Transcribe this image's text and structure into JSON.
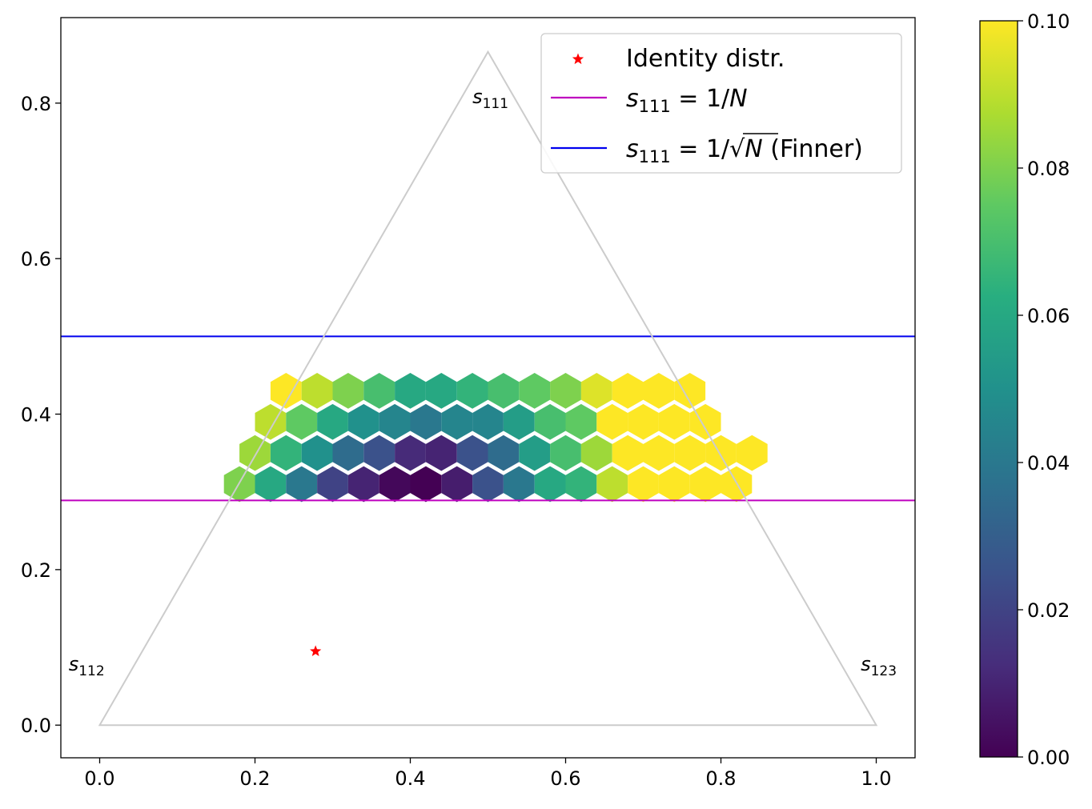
{
  "chart_data": {
    "type": "heatmap",
    "plot_kind": "hexbin on ternary simplex",
    "xlim": [
      -0.05,
      1.05
    ],
    "ylim": [
      -0.042,
      0.91
    ],
    "x_ticks": [
      "0.0",
      "0.2",
      "0.4",
      "0.6",
      "0.8",
      "1.0"
    ],
    "y_ticks": [
      "0.0",
      "0.2",
      "0.4",
      "0.6",
      "0.8"
    ],
    "triangle": {
      "vertices": [
        [
          0,
          0
        ],
        [
          1,
          0
        ],
        [
          0.5,
          0.866
        ]
      ],
      "corner_labels": [
        {
          "sym": "s",
          "sub": "112",
          "x": -0.04,
          "y": 0.07
        },
        {
          "sym": "s",
          "sub": "123",
          "x": 0.98,
          "y": 0.07
        },
        {
          "sym": "s",
          "sub": "111",
          "x": 0.48,
          "y": 0.8
        }
      ]
    },
    "hlines": [
      {
        "y": 0.289,
        "color": "#bf00bf",
        "legend_index": 1
      },
      {
        "y": 0.5,
        "color": "#0000ee",
        "legend_index": 2
      }
    ],
    "points": [
      {
        "x": 0.278,
        "y": 0.095,
        "marker": "star",
        "color": "#ff0000",
        "legend_index": 0
      }
    ],
    "legend": {
      "location": "upper right",
      "entries": [
        {
          "kind": "marker",
          "color": "#ff0000",
          "label": "Identity distr."
        },
        {
          "kind": "line",
          "color": "#bf00bf",
          "sym": "s",
          "sub": "111",
          "eq": " = 1/",
          "var": "N",
          "suffix": ""
        },
        {
          "kind": "line",
          "color": "#0000ee",
          "sym": "s",
          "sub": "111",
          "eq": " = 1/",
          "var": "N",
          "sqrt": true,
          "suffix": " (Finner)"
        }
      ]
    },
    "colorbar": {
      "colormap": "viridis",
      "vmin": 0.0,
      "vmax": 0.1,
      "ticks": [
        "0.00",
        "0.02",
        "0.04",
        "0.06",
        "0.08",
        "0.10"
      ]
    },
    "hex_rows": [
      {
        "y": 0.31,
        "x0": 0.18,
        "values": [
          0.08,
          0.06,
          0.04,
          0.02,
          0.01,
          0.002,
          0.0,
          0.008,
          0.025,
          0.04,
          0.06,
          0.065,
          0.09,
          0.1,
          0.1,
          0.1,
          0.1
        ]
      },
      {
        "y": 0.35,
        "x0": 0.2,
        "values": [
          0.085,
          0.065,
          0.05,
          0.035,
          0.025,
          0.012,
          0.01,
          0.025,
          0.035,
          0.055,
          0.07,
          0.085,
          0.1,
          0.1,
          0.1,
          0.1,
          0.1
        ]
      },
      {
        "y": 0.39,
        "x0": 0.22,
        "values": [
          0.09,
          0.075,
          0.06,
          0.05,
          0.045,
          0.04,
          0.045,
          0.045,
          0.055,
          0.07,
          0.075,
          0.1,
          0.1,
          0.1,
          0.1
        ]
      },
      {
        "y": 0.43,
        "x0": 0.24,
        "values": [
          0.1,
          0.09,
          0.08,
          0.07,
          0.06,
          0.06,
          0.065,
          0.07,
          0.075,
          0.08,
          0.095,
          0.1,
          0.1,
          0.1
        ]
      }
    ],
    "hex_dx": 0.04
  }
}
